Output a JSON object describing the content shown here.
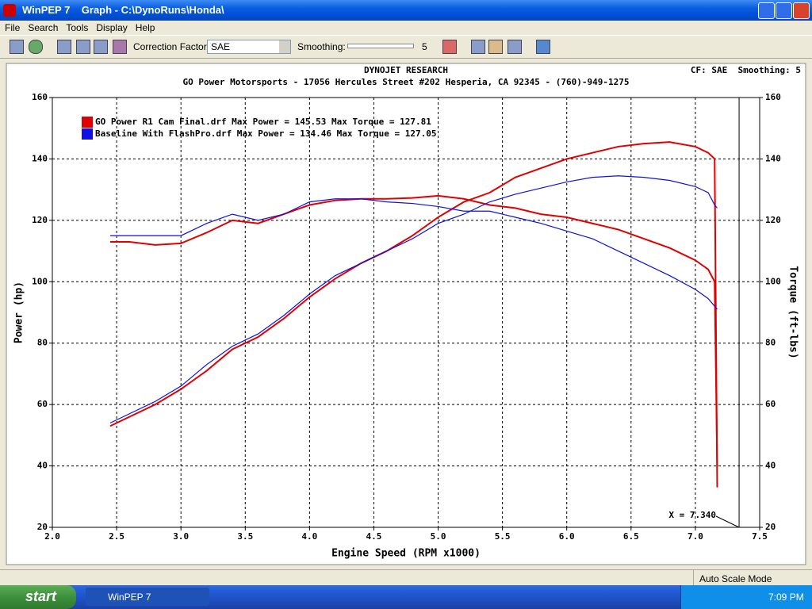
{
  "window": {
    "title": "WinPEP 7    Graph - C:\\DynoRuns\\Honda\\",
    "menu": [
      "File",
      "Search",
      "Tools",
      "Display",
      "Help"
    ]
  },
  "toolbar": {
    "correction_label": "Correction Factor:",
    "correction_value": "SAE",
    "smoothing_label": "Smoothing:",
    "smoothing_value": 5
  },
  "chart_data": {
    "type": "line",
    "heading": "DYNOJET RESEARCH",
    "subtitle": "GO Power Motorsports - 17056 Hercules Street #202 Hesperia, CA 92345 - (760)-949-1275",
    "info": "CF: SAE  Smoothing: 5",
    "xlabel": "Engine Speed (RPM x1000)",
    "ylabel": "Power (hp)",
    "y2label": "Torque (ft-lbs)",
    "xlim": [
      2.0,
      7.5
    ],
    "xticks": [
      {
        "value": 2,
        "label": "2.0"
      },
      2.5,
      {
        "value": 3,
        "label": "3.0"
      },
      3.5,
      {
        "value": 4,
        "label": "4.0"
      },
      4.5,
      {
        "value": 5,
        "label": "5.0"
      },
      5.5,
      {
        "value": 6,
        "label": "6.0"
      },
      6.5,
      {
        "value": 7,
        "label": "7.0"
      },
      7.5
    ],
    "ylim": [
      20,
      160
    ],
    "yticks": [
      20,
      40,
      60,
      80,
      100,
      120,
      140,
      160
    ],
    "y2lim": [
      20,
      160
    ],
    "y2ticks": [
      20,
      40,
      60,
      80,
      100,
      120,
      140,
      160
    ],
    "grid": true,
    "x": [
      2.45,
      2.6,
      2.8,
      3.0,
      3.2,
      3.4,
      3.6,
      3.8,
      4.0,
      4.2,
      4.4,
      4.6,
      4.8,
      5.0,
      5.2,
      5.4,
      5.6,
      5.8,
      6.0,
      6.2,
      6.4,
      6.6,
      6.8,
      7.0,
      7.1,
      7.15,
      7.17
    ],
    "series": [
      {
        "name": "GO Power R1 Cam Final.drf Max Power = 145.53 Max Torque = 127.81",
        "color": "#e00000",
        "values": [
          53,
          56,
          60,
          65,
          71,
          78,
          82,
          88,
          95,
          101,
          106,
          110,
          115,
          121,
          126,
          129,
          134,
          137,
          140,
          142,
          144,
          145,
          145.5,
          144,
          142,
          140,
          33
        ],
        "y2_values": [
          113,
          113,
          112,
          112.5,
          116,
          120,
          119,
          122,
          125,
          126.5,
          127,
          127,
          127.3,
          128,
          127,
          125,
          124,
          122,
          121,
          119,
          117,
          114,
          111,
          107,
          104,
          100,
          40
        ]
      },
      {
        "name": "Baseline With FlashPro.drf Max Power = 134.46 Max Torque = 127.05",
        "color": "#1010e0",
        "values": [
          54,
          57,
          61,
          66,
          73,
          79,
          83,
          89,
          96,
          102,
          106,
          110,
          114,
          119,
          122,
          126,
          128.5,
          130.5,
          132.5,
          134,
          134.5,
          134,
          133,
          131,
          129,
          125,
          124
        ],
        "y2_values": [
          115,
          115,
          115,
          115,
          119,
          122,
          120,
          122,
          126,
          127,
          127,
          126,
          125.5,
          124.5,
          123,
          123,
          121,
          119,
          116.5,
          114,
          110,
          106,
          102,
          97.5,
          94.5,
          92,
          91
        ]
      }
    ],
    "cursor": {
      "value": 7.34,
      "label": "X = 7.340"
    }
  },
  "status": "Auto Scale Mode",
  "taskbar": {
    "start": "start",
    "task": "WinPEP 7",
    "clock": "7:09 PM"
  }
}
